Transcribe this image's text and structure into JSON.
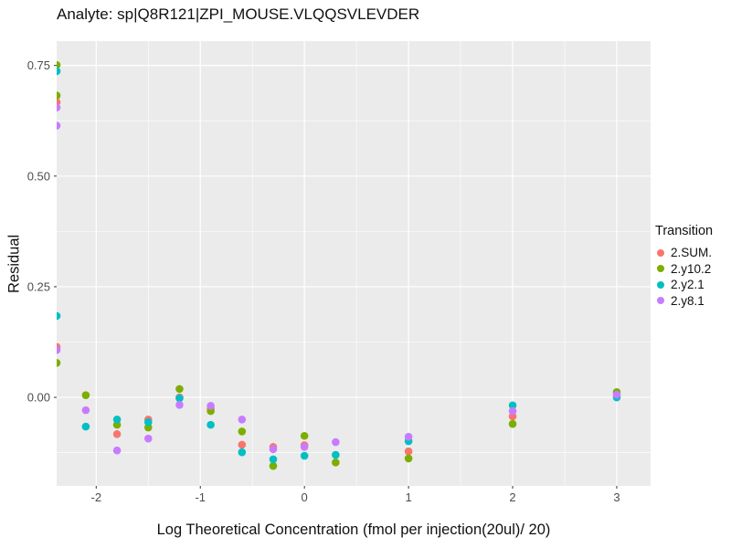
{
  "title": "Analyte: sp|Q8R121|ZPI_MOUSE.VLQQSVLEVDER",
  "colors": {
    "panel_background": "#EBEBEB",
    "gridline": "#FFFFFF",
    "tick_mark": "#333333",
    "tick_label": "#4D4D4D",
    "text": "#111111"
  },
  "chart_data": {
    "type": "scatter",
    "title": "Analyte: sp|Q8R121|ZPI_MOUSE.VLQQSVLEVDER",
    "xlabel": "Log Theoretical Concentration (fmol per injection(20ul)/ 20)",
    "ylabel": "Residual",
    "xlim": [
      -2.38,
      3.325
    ],
    "ylim": [
      -0.2,
      0.805
    ],
    "x_ticks": [
      -2,
      -1,
      0,
      1,
      2,
      3
    ],
    "x_tick_labels": [
      "-2",
      "-1",
      "0",
      "1",
      "2",
      "3"
    ],
    "y_ticks": [
      0.0,
      0.25,
      0.5,
      0.75
    ],
    "y_tick_labels": [
      "0.00",
      "0.25",
      "0.50",
      "0.75"
    ],
    "grid": "major-and-minor",
    "legend_title": "Transition",
    "legend_position": "right",
    "point_radius": 4.3,
    "series": [
      {
        "name": "2.SUM.",
        "color": "#F8766D",
        "points": [
          [
            -2.38,
            0.667
          ],
          [
            -2.38,
            0.114
          ],
          [
            -1.8,
            -0.083
          ],
          [
            -1.5,
            -0.05
          ],
          [
            -1.2,
            0.0
          ],
          [
            -0.9,
            -0.025
          ],
          [
            -0.6,
            -0.107
          ],
          [
            -0.3,
            -0.112
          ],
          [
            0,
            -0.108
          ],
          [
            1,
            -0.122
          ],
          [
            2,
            -0.043
          ]
        ]
      },
      {
        "name": "2.y10.2",
        "color": "#7CAE00",
        "points": [
          [
            -2.38,
            0.751
          ],
          [
            -2.38,
            0.682
          ],
          [
            -2.38,
            0.078
          ],
          [
            -2.1,
            0.005
          ],
          [
            -1.8,
            -0.062
          ],
          [
            -1.5,
            -0.068
          ],
          [
            -1.2,
            0.019
          ],
          [
            -0.9,
            -0.031
          ],
          [
            -0.6,
            -0.077
          ],
          [
            -0.3,
            -0.155
          ],
          [
            0,
            -0.087
          ],
          [
            0.3,
            -0.147
          ],
          [
            1,
            -0.138
          ],
          [
            2,
            -0.06
          ],
          [
            3,
            0.012
          ]
        ]
      },
      {
        "name": "2.y2.1",
        "color": "#00BFC4",
        "points": [
          [
            -2.38,
            0.737
          ],
          [
            -2.38,
            0.184
          ],
          [
            -2.1,
            -0.066
          ],
          [
            -1.8,
            -0.05
          ],
          [
            -1.5,
            -0.056
          ],
          [
            -1.2,
            -0.002
          ],
          [
            -0.9,
            -0.062
          ],
          [
            -0.6,
            -0.124
          ],
          [
            -0.3,
            -0.14
          ],
          [
            0,
            -0.132
          ],
          [
            0.3,
            -0.13
          ],
          [
            1,
            -0.099
          ],
          [
            2,
            -0.018
          ],
          [
            3,
            0.0
          ]
        ]
      },
      {
        "name": "2.y8.1",
        "color": "#C77CFF",
        "points": [
          [
            -2.38,
            0.655
          ],
          [
            -2.38,
            0.614
          ],
          [
            -2.38,
            0.107
          ],
          [
            -2.1,
            -0.029
          ],
          [
            -1.8,
            -0.12
          ],
          [
            -1.5,
            -0.093
          ],
          [
            -1.2,
            -0.017
          ],
          [
            -0.9,
            -0.019
          ],
          [
            -0.6,
            -0.05
          ],
          [
            -0.3,
            -0.117
          ],
          [
            0,
            -0.112
          ],
          [
            0.3,
            -0.101
          ],
          [
            1,
            -0.089
          ],
          [
            2,
            -0.031
          ],
          [
            3,
            0.006
          ]
        ]
      }
    ]
  }
}
